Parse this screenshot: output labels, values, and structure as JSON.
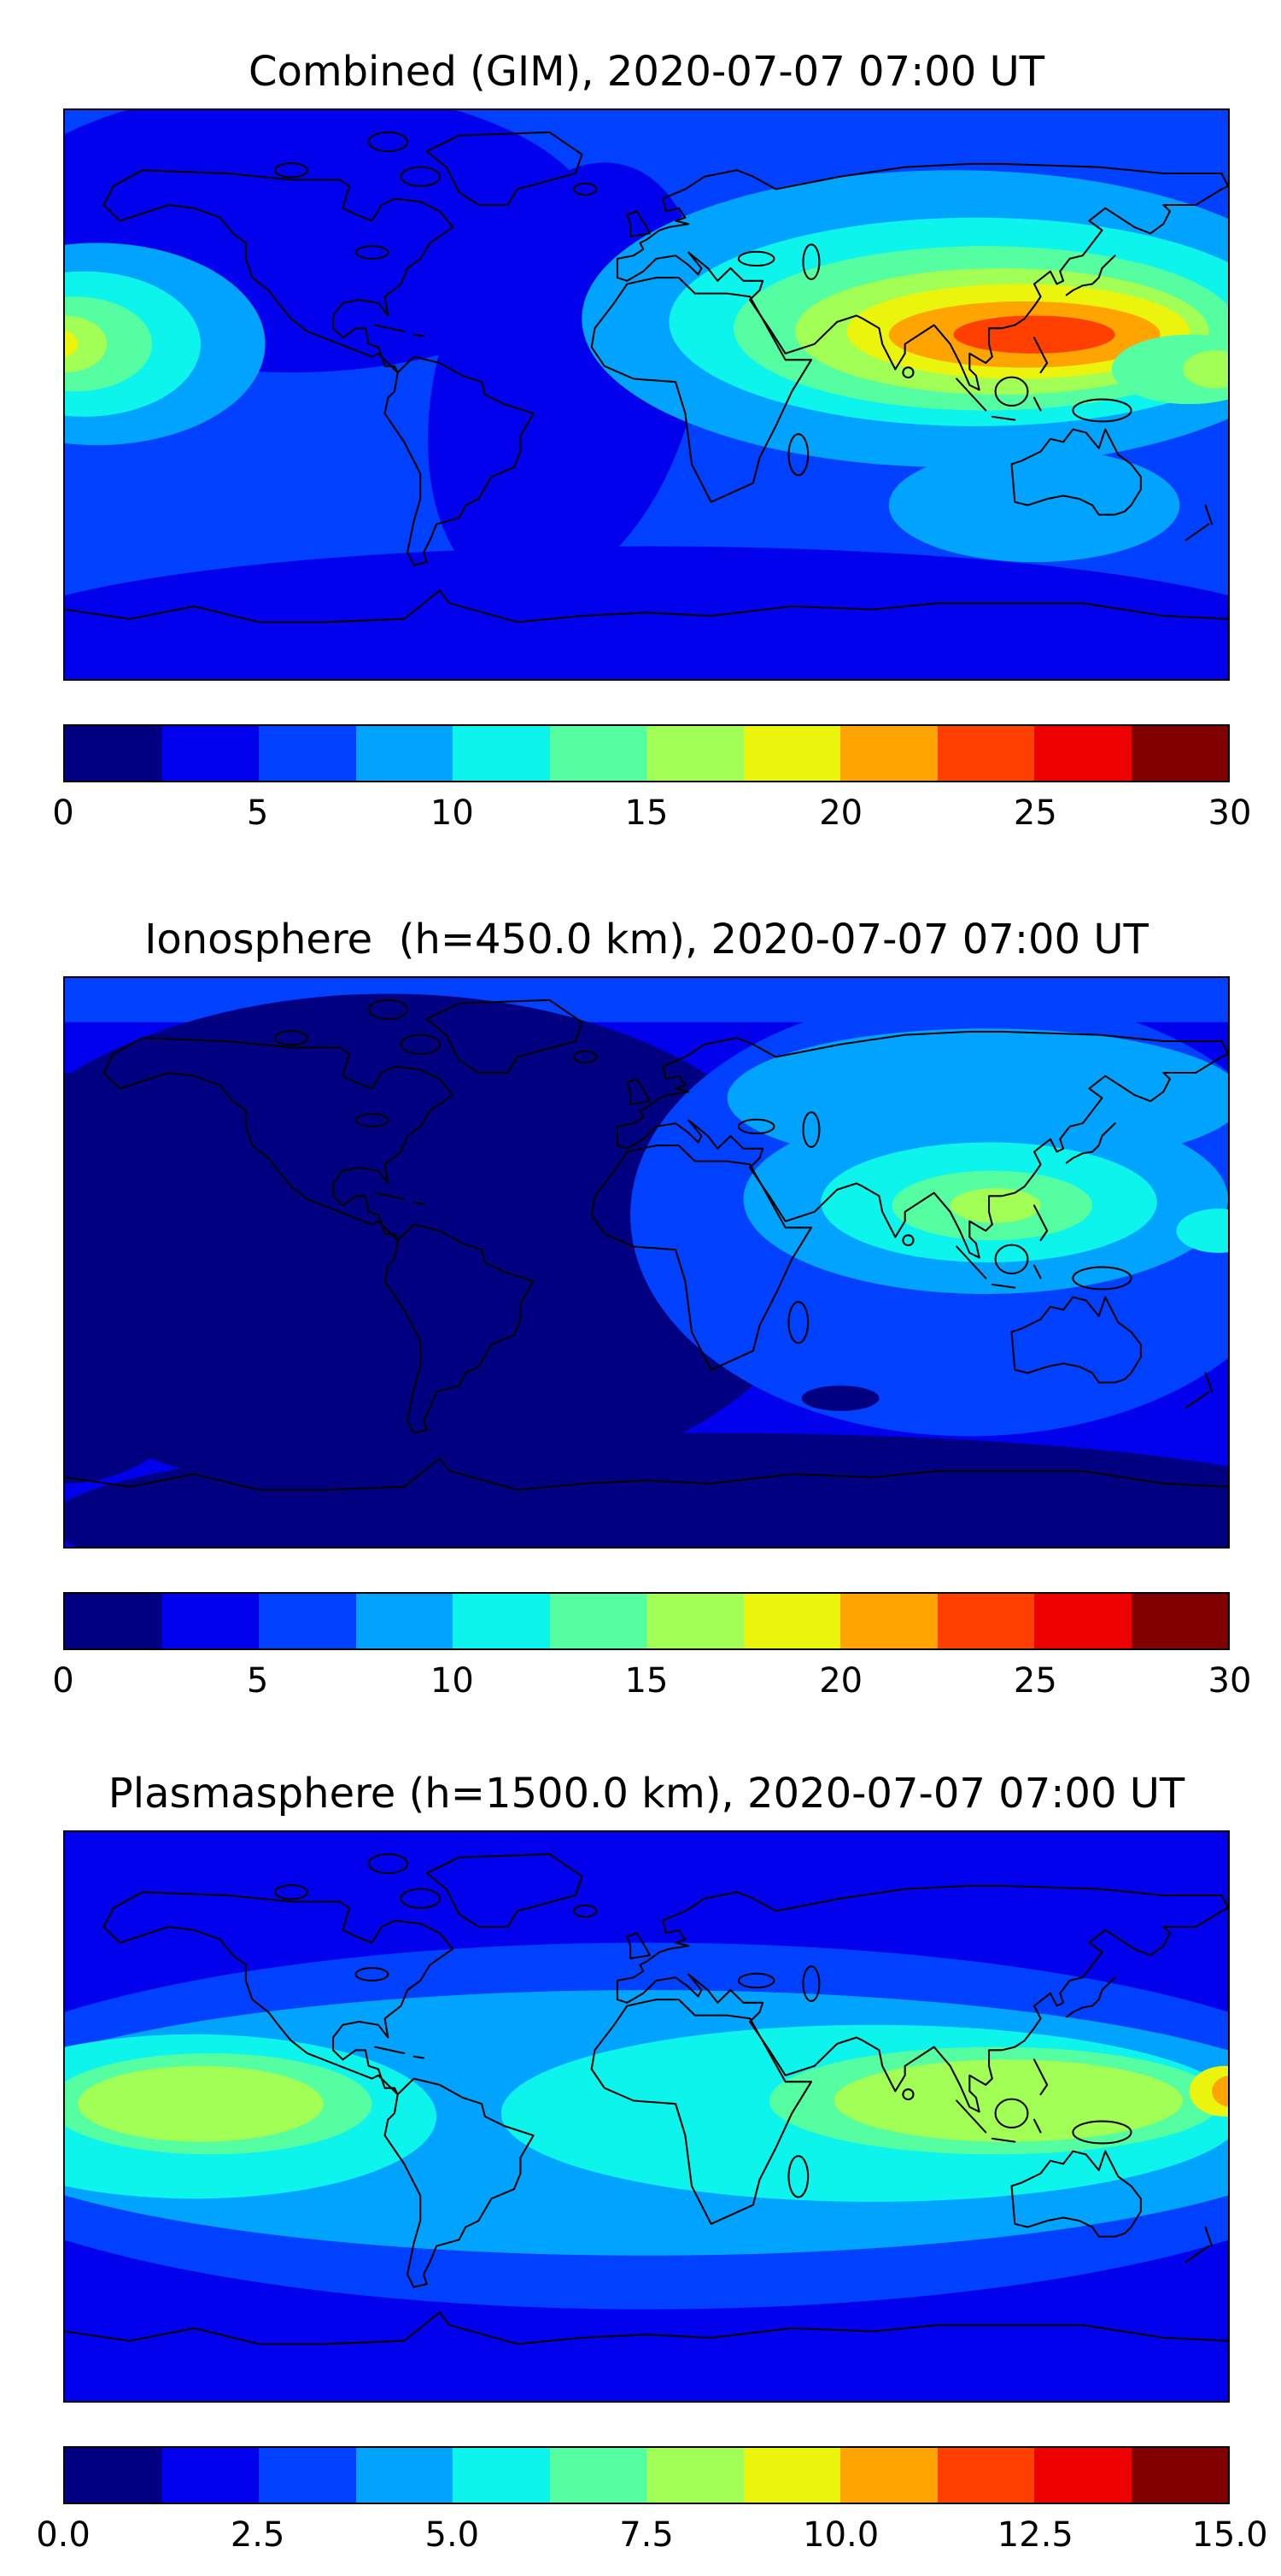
{
  "page": {
    "background": "#ffffff"
  },
  "palette": {
    "name": "jet (12 discrete levels)",
    "jet12": [
      "#000080",
      "#0000ed",
      "#0040ff",
      "#00a4ff",
      "#0cf4eb",
      "#55ffa1",
      "#a1ff55",
      "#ebf40c",
      "#ffa400",
      "#ff4000",
      "#ed0000",
      "#800000"
    ]
  },
  "panels": [
    {
      "id": "combined",
      "title": "Combined (GIM), 2020-07-07 07:00 UT",
      "colorbar": {
        "min": 0,
        "max": 30,
        "segments": 12,
        "ticks": [
          "0",
          "5",
          "10",
          "15",
          "20",
          "25",
          "30"
        ]
      }
    },
    {
      "id": "ionosphere",
      "title": "Ionosphere  (h=450.0 km), 2020-07-07 07:00 UT",
      "colorbar": {
        "min": 0,
        "max": 30,
        "segments": 12,
        "ticks": [
          "0",
          "5",
          "10",
          "15",
          "20",
          "25",
          "30"
        ]
      }
    },
    {
      "id": "plasmasphere",
      "title": "Plasmasphere (h=1500.0 km), 2020-07-07 07:00 UT",
      "colorbar": {
        "min": 0,
        "max": 15,
        "segments": 12,
        "ticks": [
          "0.0",
          "2.5",
          "5.0",
          "7.5",
          "10.0",
          "12.5",
          "15.0"
        ]
      }
    }
  ],
  "chart_data": [
    {
      "type": "heatmap",
      "title": "Combined (GIM), 2020-07-07 07:00 UT",
      "projection": "equirectangular world map with black coastlines",
      "lon_range": [
        -180,
        180
      ],
      "lat_range": [
        -90,
        90
      ],
      "colormap": "jet",
      "levels": [
        0,
        2.5,
        5,
        7.5,
        10,
        12.5,
        15,
        17.5,
        20,
        22.5,
        25,
        27.5,
        30
      ],
      "colorbar_ticks": [
        0,
        5,
        10,
        15,
        20,
        25,
        30
      ],
      "estimated_features": [
        {
          "name": "primary maximum",
          "value": 24,
          "lon": 115,
          "lat": 18,
          "note": "orange-red core over South/Southeast Asia, bright band spans lon 20E-180"
        },
        {
          "name": "secondary maximum",
          "value": 17,
          "lon": -178,
          "lat": 15,
          "note": "yellow-green spot at left map edge (central Pacific)"
        },
        {
          "name": "minimum regions",
          "value": 4,
          "note": "dark blue over North America/N Pacific, mid-Atlantic diagonal band and southern high latitudes"
        }
      ]
    },
    {
      "type": "heatmap",
      "title": "Ionosphere  (h=450.0 km), 2020-07-07 07:00 UT",
      "projection": "equirectangular world map with black coastlines",
      "lon_range": [
        -180,
        180
      ],
      "lat_range": [
        -90,
        90
      ],
      "colormap": "jet",
      "levels": [
        0,
        2.5,
        5,
        7.5,
        10,
        12.5,
        15,
        17.5,
        20,
        22.5,
        25,
        27.5,
        30
      ],
      "colorbar_ticks": [
        0,
        5,
        10,
        15,
        20,
        25,
        30
      ],
      "estimated_features": [
        {
          "name": "primary maximum",
          "value": 15,
          "lon": 108,
          "lat": 18,
          "note": "cyan-green patch with small yellow-green core over India/Southeast Asia"
        },
        {
          "name": "light band",
          "value": 8,
          "note": "light blue band across Siberia / northern Eurasia"
        },
        {
          "name": "minimum regions",
          "value": 2,
          "note": "dark navy over Americas, Atlantic and southern ocean"
        }
      ]
    },
    {
      "type": "heatmap",
      "title": "Plasmasphere (h=1500.0 km), 2020-07-07 07:00 UT",
      "projection": "equirectangular world map with black coastlines",
      "lon_range": [
        -180,
        180
      ],
      "lat_range": [
        -90,
        90
      ],
      "colormap": "jet",
      "levels": [
        0,
        1.25,
        2.5,
        3.75,
        5,
        6.25,
        7.5,
        8.75,
        10,
        11.25,
        12.5,
        13.75,
        15
      ],
      "colorbar_ticks": [
        0,
        2.5,
        5,
        7.5,
        10,
        12.5,
        15
      ],
      "estimated_features": [
        {
          "name": "equatorial band",
          "value": 7,
          "note": "cyan band along low latitudes, pinched over South America"
        },
        {
          "name": "yellow-green blob west",
          "value": 10,
          "lon": -138,
          "lat": 5
        },
        {
          "name": "yellow-green blob east",
          "value": 10,
          "lon": 112,
          "lat": 5
        },
        {
          "name": "edge maximum",
          "value": 13,
          "lon": 179,
          "lat": 8,
          "note": "small orange spot at right map edge"
        },
        {
          "name": "minimum regions",
          "value": 2,
          "note": "dark blue bands at high northern and southern latitudes"
        }
      ]
    }
  ]
}
